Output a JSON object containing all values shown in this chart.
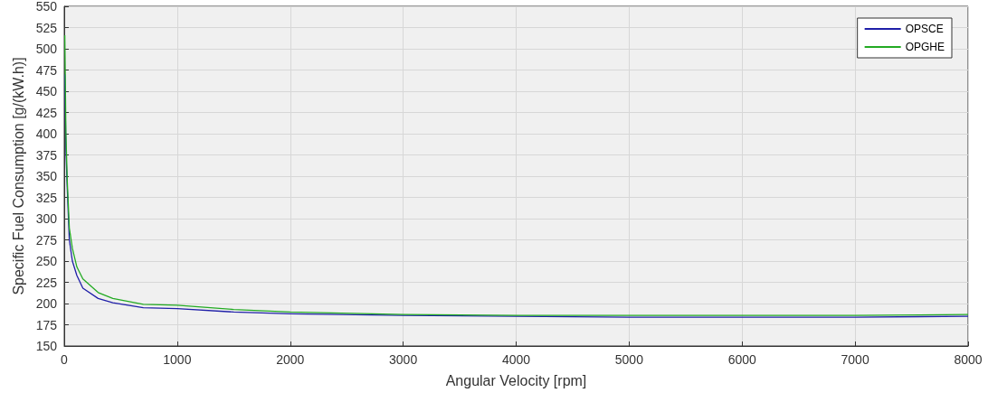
{
  "chart_data": {
    "type": "line",
    "xlabel": "Angular Velocity [rpm]",
    "ylabel": "Specific Fuel Consumption [g/(kW.h)]",
    "xlim": [
      0,
      8000
    ],
    "xticks": [
      0,
      1000,
      2000,
      3000,
      4000,
      5000,
      6000,
      7000,
      8000
    ],
    "ylim": [
      150,
      550
    ],
    "yticks": [
      150,
      175,
      200,
      225,
      250,
      275,
      300,
      325,
      350,
      375,
      400,
      425,
      450,
      475,
      500,
      525,
      550
    ],
    "grid": true,
    "legend": "top right",
    "marker": "none",
    "line_style": "solid",
    "series": [
      {
        "name": "OPSCE",
        "color": "#1f1fa8",
        "x": [
          5,
          15,
          27,
          45,
          72,
          112,
          165,
          300,
          430,
          700,
          1000,
          1500,
          2000,
          3000,
          4000,
          5000,
          6000,
          7000,
          8000
        ],
        "values": [
          470,
          380,
          335,
          275,
          250,
          233,
          218,
          206,
          201,
          195,
          194,
          190,
          188,
          186,
          185,
          184,
          184,
          184,
          185
        ]
      },
      {
        "name": "OPGHE",
        "color": "#22aa22",
        "x": [
          5,
          15,
          27,
          45,
          72,
          112,
          165,
          300,
          430,
          700,
          1000,
          1500,
          2000,
          3000,
          4000,
          5000,
          6000,
          7000,
          8000
        ],
        "values": [
          516,
          400,
          343,
          289,
          265,
          243,
          229,
          213,
          206,
          199,
          198,
          193,
          190,
          187,
          186,
          186,
          186,
          186,
          187
        ]
      }
    ]
  }
}
